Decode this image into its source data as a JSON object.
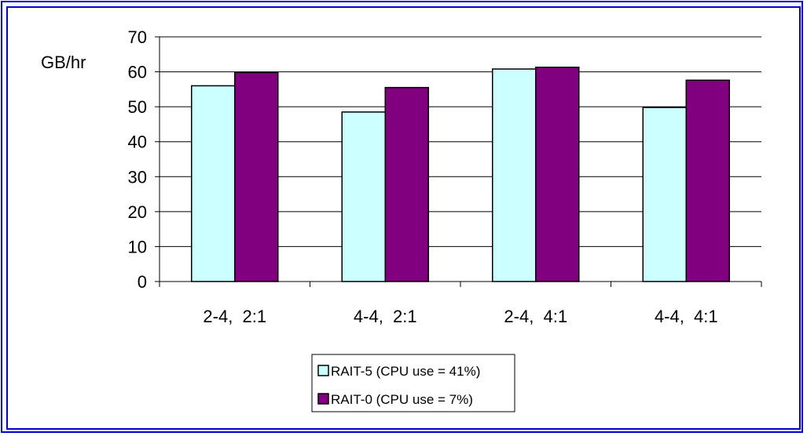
{
  "chart_data": {
    "type": "bar",
    "ylabel": "GB/hr",
    "ylim": [
      0,
      70
    ],
    "yticks": [
      0,
      10,
      20,
      30,
      40,
      50,
      60,
      70
    ],
    "grid": true,
    "legend_position": "bottom-center",
    "categories": [
      "2-4,  2:1",
      "4-4,  2:1",
      "2-4,  4:1",
      "4-4,  4:1"
    ],
    "series": [
      {
        "name": "RAIT-5 (CPU use = 41%)",
        "color": "#ccffff",
        "values": [
          56,
          48.5,
          60.8,
          49.8
        ]
      },
      {
        "name": "RAIT-0 (CPU use = 7%)",
        "color": "#800080",
        "values": [
          59.8,
          55.5,
          61.3,
          57.6
        ]
      }
    ]
  }
}
